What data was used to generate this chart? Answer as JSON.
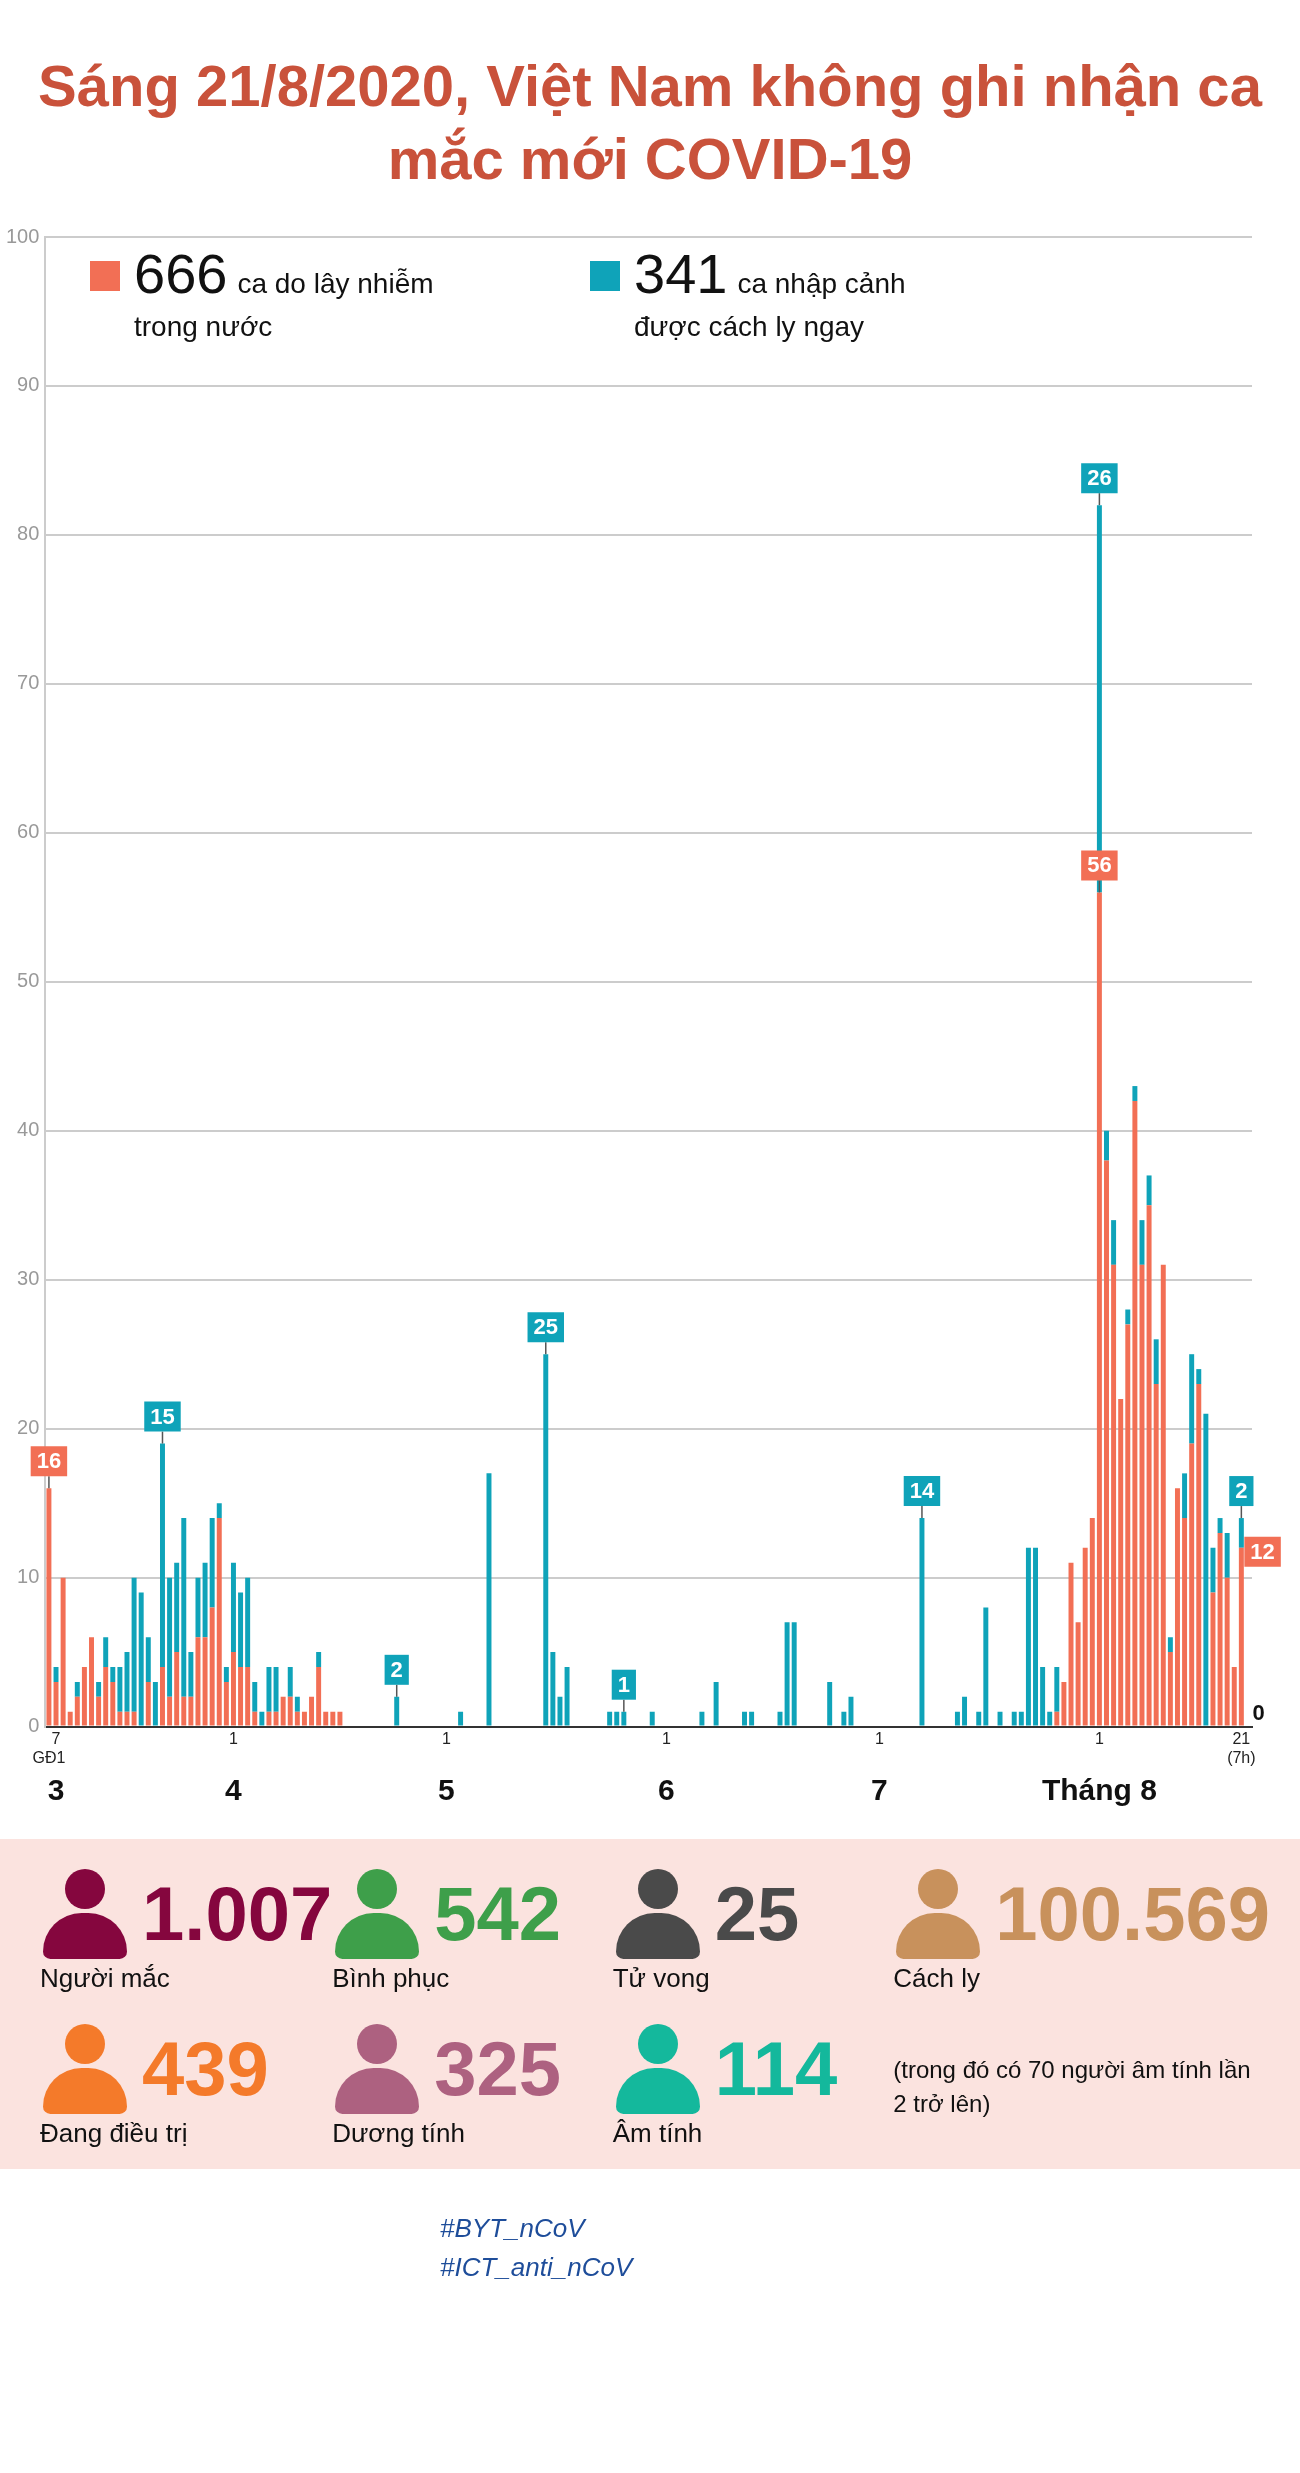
{
  "chart_data": [
    {
      "type": "bar",
      "title": "Sáng 21/8/2020, Việt Nam không ghi nhận ca mắc mới COVID-19",
      "stacked": true,
      "legend": "top left",
      "grid": "y",
      "ylim": [
        0,
        100
      ],
      "yticks": [
        0,
        10,
        20,
        30,
        40,
        50,
        60,
        70,
        80,
        90,
        100
      ],
      "categories": [
        "GĐ1",
        "7",
        null,
        null,
        null,
        null,
        null,
        null,
        null,
        null,
        null,
        null,
        null,
        null,
        null,
        null,
        null,
        null,
        null,
        null,
        null,
        null,
        null,
        null,
        null,
        null,
        "1",
        null,
        null,
        null,
        null,
        null,
        null,
        null,
        null,
        null,
        null,
        null,
        null,
        null,
        null,
        null,
        null,
        null,
        null,
        null,
        null,
        null,
        null,
        null,
        null,
        null,
        null,
        null,
        null,
        null,
        "1",
        null,
        null,
        null,
        null,
        null,
        null,
        null,
        null,
        null,
        null,
        null,
        null,
        null,
        null,
        null,
        null,
        null,
        null,
        null,
        null,
        null,
        null,
        null,
        null,
        null,
        null,
        null,
        null,
        null,
        null,
        "1",
        null,
        null,
        null,
        null,
        null,
        null,
        null,
        null,
        null,
        null,
        null,
        null,
        null,
        null,
        null,
        null,
        null,
        null,
        null,
        null,
        null,
        null,
        null,
        null,
        null,
        null,
        null,
        null,
        null,
        "1",
        null,
        null,
        null,
        null,
        null,
        null,
        null,
        null,
        null,
        null,
        null,
        null,
        null,
        null,
        null,
        null,
        null,
        null,
        null,
        null,
        null,
        null,
        null,
        null,
        null,
        null,
        null,
        null,
        null,
        null,
        "1",
        null,
        null,
        null,
        null,
        null,
        null,
        null,
        null,
        null,
        null,
        null,
        null,
        null,
        null,
        null,
        null,
        null,
        null,
        null,
        "21 (7h)",
        null
      ],
      "series": [
        {
          "name": "666 ca do lây nhiễm trong nước",
          "color": "#f26f55",
          "values": [
            16,
            3,
            10,
            1,
            2,
            4,
            6,
            2,
            4,
            3,
            1,
            1,
            1,
            0,
            3,
            0,
            4,
            2,
            5,
            2,
            2,
            6,
            6,
            8,
            14,
            3,
            5,
            4,
            4,
            1,
            0,
            1,
            1,
            2,
            2,
            1,
            1,
            2,
            4,
            1,
            1,
            1,
            0,
            0,
            0,
            0,
            0,
            0,
            0,
            0,
            0,
            0,
            0,
            0,
            0,
            0,
            0,
            0,
            0,
            0,
            0,
            0,
            0,
            0,
            0,
            0,
            0,
            0,
            0,
            0,
            0,
            0,
            0,
            0,
            0,
            0,
            0,
            0,
            0,
            0,
            0,
            0,
            0,
            0,
            0,
            0,
            0,
            0,
            0,
            0,
            0,
            0,
            0,
            0,
            0,
            0,
            0,
            0,
            0,
            0,
            0,
            0,
            0,
            0,
            0,
            0,
            0,
            0,
            0,
            0,
            0,
            0,
            0,
            0,
            0,
            0,
            0,
            0,
            0,
            0,
            0,
            0,
            0,
            0,
            0,
            0,
            0,
            0,
            0,
            0,
            0,
            0,
            0,
            0,
            0,
            0,
            0,
            0,
            0,
            0,
            0,
            0,
            1,
            3,
            11,
            7,
            12,
            14,
            56,
            38,
            31,
            22,
            27,
            42,
            31,
            35,
            23,
            31,
            5,
            16,
            14,
            19,
            23,
            0,
            9,
            13,
            10,
            4,
            12,
            0
          ],
          "value_labels": [
            "16",
            null,
            null,
            null,
            null,
            null,
            null,
            null,
            null,
            null,
            null,
            null,
            null,
            null,
            null,
            null,
            null,
            null,
            null,
            null,
            null,
            null,
            null,
            null,
            null,
            null,
            null,
            null,
            null,
            null,
            null,
            null,
            null,
            null,
            null,
            null,
            null,
            null,
            null,
            null,
            null,
            null,
            null,
            null,
            null,
            null,
            null,
            null,
            null,
            null,
            null,
            null,
            null,
            null,
            null,
            null,
            null,
            null,
            null,
            null,
            null,
            null,
            null,
            null,
            null,
            null,
            null,
            null,
            null,
            null,
            null,
            null,
            null,
            null,
            null,
            null,
            null,
            null,
            null,
            null,
            null,
            null,
            null,
            null,
            null,
            null,
            null,
            null,
            null,
            null,
            null,
            null,
            null,
            null,
            null,
            null,
            null,
            null,
            null,
            null,
            null,
            null,
            null,
            null,
            null,
            null,
            null,
            null,
            null,
            null,
            null,
            null,
            null,
            null,
            null,
            null,
            null,
            null,
            null,
            null,
            null,
            null,
            null,
            null,
            null,
            null,
            null,
            null,
            null,
            null,
            null,
            null,
            null,
            null,
            null,
            null,
            null,
            null,
            null,
            null,
            null,
            null,
            null,
            null,
            null,
            null,
            null,
            null,
            "56",
            null,
            null,
            null,
            null,
            null,
            null,
            null,
            null,
            null,
            null,
            null,
            null,
            null,
            null,
            null,
            null,
            null,
            null,
            null,
            "12",
            "0"
          ]
        },
        {
          "name": "341 ca nhập cảnh được cách ly ngay",
          "color": "#0fa3b9",
          "values": [
            0,
            1,
            0,
            0,
            1,
            0,
            0,
            1,
            2,
            1,
            3,
            4,
            9,
            9,
            3,
            3,
            15,
            8,
            6,
            12,
            3,
            4,
            5,
            6,
            1,
            1,
            6,
            5,
            6,
            2,
            1,
            3,
            3,
            0,
            2,
            1,
            0,
            0,
            1,
            0,
            0,
            0,
            0,
            0,
            0,
            0,
            0,
            0,
            0,
            2,
            0,
            0,
            0,
            0,
            0,
            0,
            0,
            0,
            1,
            0,
            0,
            0,
            17,
            0,
            0,
            0,
            0,
            0,
            0,
            0,
            25,
            5,
            2,
            4,
            0,
            0,
            0,
            0,
            0,
            1,
            1,
            1,
            0,
            0,
            0,
            1,
            0,
            0,
            0,
            0,
            0,
            0,
            1,
            0,
            3,
            0,
            0,
            0,
            1,
            1,
            0,
            0,
            0,
            1,
            7,
            7,
            0,
            0,
            0,
            0,
            3,
            0,
            1,
            2,
            0,
            0,
            0,
            0,
            0,
            0,
            0,
            0,
            0,
            14,
            0,
            0,
            0,
            0,
            1,
            2,
            0,
            1,
            8,
            0,
            1,
            0,
            1,
            1,
            12,
            12,
            4,
            1,
            3,
            0,
            0,
            0,
            0,
            0,
            26,
            2,
            3,
            0,
            1,
            1,
            3,
            2,
            3,
            0,
            1,
            0,
            3,
            6,
            1,
            21,
            3,
            1,
            3,
            0,
            2,
            0
          ],
          "value_labels": [
            null,
            null,
            null,
            null,
            null,
            null,
            null,
            null,
            null,
            null,
            null,
            null,
            null,
            null,
            null,
            null,
            "15",
            null,
            null,
            null,
            null,
            null,
            null,
            null,
            null,
            null,
            null,
            null,
            null,
            null,
            null,
            null,
            null,
            null,
            null,
            null,
            null,
            null,
            null,
            null,
            null,
            null,
            null,
            null,
            null,
            null,
            null,
            null,
            null,
            "2",
            null,
            null,
            null,
            null,
            null,
            null,
            null,
            null,
            null,
            null,
            null,
            null,
            null,
            null,
            null,
            null,
            null,
            null,
            null,
            null,
            "25",
            null,
            null,
            null,
            null,
            null,
            null,
            null,
            null,
            null,
            null,
            "1",
            null,
            null,
            null,
            null,
            null,
            null,
            null,
            null,
            null,
            null,
            null,
            null,
            null,
            null,
            null,
            null,
            null,
            null,
            null,
            null,
            null,
            null,
            null,
            null,
            null,
            null,
            null,
            null,
            null,
            null,
            null,
            null,
            null,
            null,
            null,
            null,
            null,
            null,
            null,
            null,
            null,
            "14",
            null,
            null,
            null,
            null,
            null,
            null,
            null,
            null,
            null,
            null,
            null,
            null,
            null,
            null,
            null,
            null,
            null,
            null,
            null,
            null,
            null,
            null,
            null,
            null,
            "26",
            null,
            null,
            null,
            null,
            null,
            null,
            null,
            null,
            null,
            null,
            null,
            null,
            null,
            null,
            null,
            null,
            null,
            null,
            null,
            "2",
            null
          ]
        }
      ],
      "annotations": [
        "3",
        "4",
        "5",
        "6",
        "7",
        "Tháng 8"
      ]
    },
    {
      "type": "other",
      "annotations": [
        "1.007",
        "Người mắc",
        "542",
        "Bình phục",
        "25",
        "Tử vong",
        "100.569",
        "Cách ly",
        "439",
        "Đang điều trị",
        "325",
        "Dương tính",
        "114",
        "Âm tính",
        "(trong đó có 70 người âm tính lần 2 trở lên)",
        "#BYT_nCoV",
        "#ICT_anti_nCoV"
      ]
    }
  ]
}
